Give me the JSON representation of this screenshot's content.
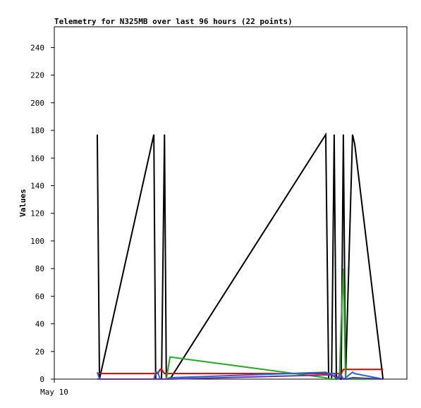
{
  "chart_data": {
    "type": "line",
    "title": "Telemetry for N325MB over last 96 hours (22 points)",
    "y_label": "Values",
    "x": [
      11.7,
      12.3,
      27.1,
      27.6,
      28.2,
      28.8,
      29.2,
      30.0,
      30.5,
      31.5,
      73.9,
      74.7,
      75.5,
      76.2,
      76.8,
      77.6,
      78.1,
      78.7,
      79.3,
      81.2,
      81.8,
      89.5
    ],
    "xlim": [
      0,
      96
    ],
    "xticks": [
      {
        "value": 0,
        "label": "May 10"
      }
    ],
    "ylim": [
      0,
      255
    ],
    "yticks": [
      0,
      20,
      40,
      60,
      80,
      100,
      120,
      140,
      160,
      180,
      200,
      220,
      240
    ],
    "series": [
      {
        "color": "#000000",
        "values": [
          177,
          0,
          177,
          0,
          0,
          0,
          0,
          177,
          0,
          0,
          177,
          0,
          0,
          177,
          0,
          0,
          0,
          177,
          0,
          177,
          170,
          0
        ]
      },
      {
        "color": "#dd0000",
        "values": [
          4,
          4,
          4,
          4,
          4,
          7,
          7,
          4,
          4,
          4,
          4,
          4,
          4,
          4,
          4,
          4,
          4,
          7,
          7,
          7,
          7,
          7
        ]
      },
      {
        "color": "#22aa22",
        "values": [
          0,
          0,
          0,
          0,
          0,
          0,
          0,
          0,
          0,
          16,
          1,
          0,
          0,
          0,
          0,
          0,
          40,
          80,
          0,
          0,
          0,
          0
        ]
      },
      {
        "color": "#2266cc",
        "values": [
          5,
          0,
          0,
          5,
          5,
          0,
          0,
          0,
          0,
          1,
          5,
          4,
          4,
          4,
          0,
          3,
          3,
          0,
          1,
          5,
          4,
          0
        ]
      },
      {
        "color": "#6633aa",
        "values": [
          0,
          0,
          0,
          0,
          0,
          0,
          0,
          0,
          0,
          0,
          3,
          3,
          3,
          2,
          0,
          1,
          1,
          0,
          0,
          1,
          1,
          0
        ]
      }
    ]
  }
}
